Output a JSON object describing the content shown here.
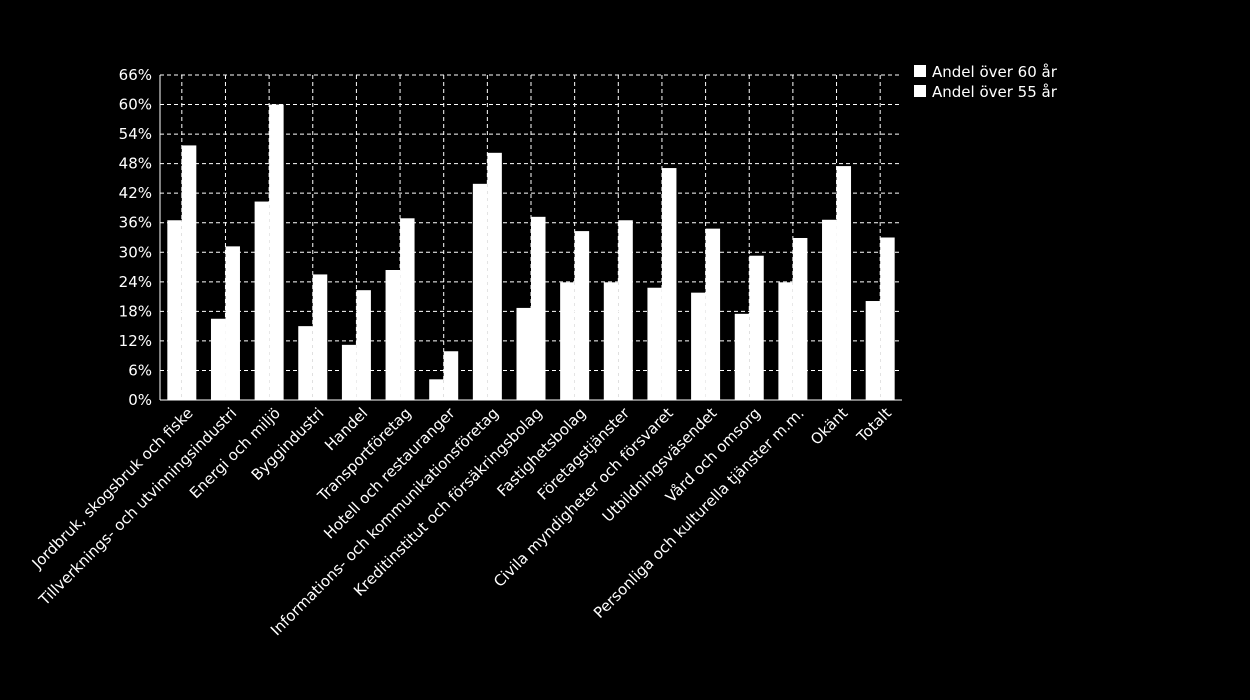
{
  "chart_data": {
    "type": "bar",
    "categories": [
      "Jordbruk, skogsbruk och fiske",
      "Tillverknings- och utvinningsindustri",
      "Energi och miljö",
      "Byggindustri",
      "Handel",
      "Transportföretag",
      "Hotell och restauranger",
      "Informations- och kommunikationsföretag",
      "Kreditinstitut och försäkringsbolag",
      "Fastighetsbolag",
      "Företagstjänster",
      "Civila myndigheter och försvaret",
      "Utbildningsväsendet",
      "Vård och omsorg",
      "Personliga och kulturella tjänster m.m.",
      "Okänt",
      "Totalt"
    ],
    "series": [
      {
        "name": "Andel över 60 år",
        "values": [
          36.5,
          16.5,
          40.3,
          15.0,
          11.2,
          26.4,
          4.2,
          43.9,
          18.7,
          23.9,
          23.9,
          22.8,
          21.8,
          17.5,
          23.9,
          36.6,
          20.1
        ],
        "color": "#ffffff"
      },
      {
        "name": "Andel över 55 år",
        "values": [
          51.7,
          31.2,
          60.0,
          25.5,
          22.3,
          36.9,
          9.9,
          50.2,
          37.2,
          34.3,
          36.5,
          47.1,
          34.8,
          29.3,
          32.9,
          47.5,
          33.0
        ],
        "color": "#ffffff"
      }
    ],
    "y_ticks": [
      "0%",
      "6%",
      "12%",
      "18%",
      "24%",
      "30%",
      "36%",
      "42%",
      "48%",
      "54%",
      "60%",
      "66%"
    ],
    "ylim": [
      0,
      66
    ],
    "grid": true,
    "legend_position": "top-right",
    "title": "",
    "xlabel": "",
    "ylabel": ""
  }
}
